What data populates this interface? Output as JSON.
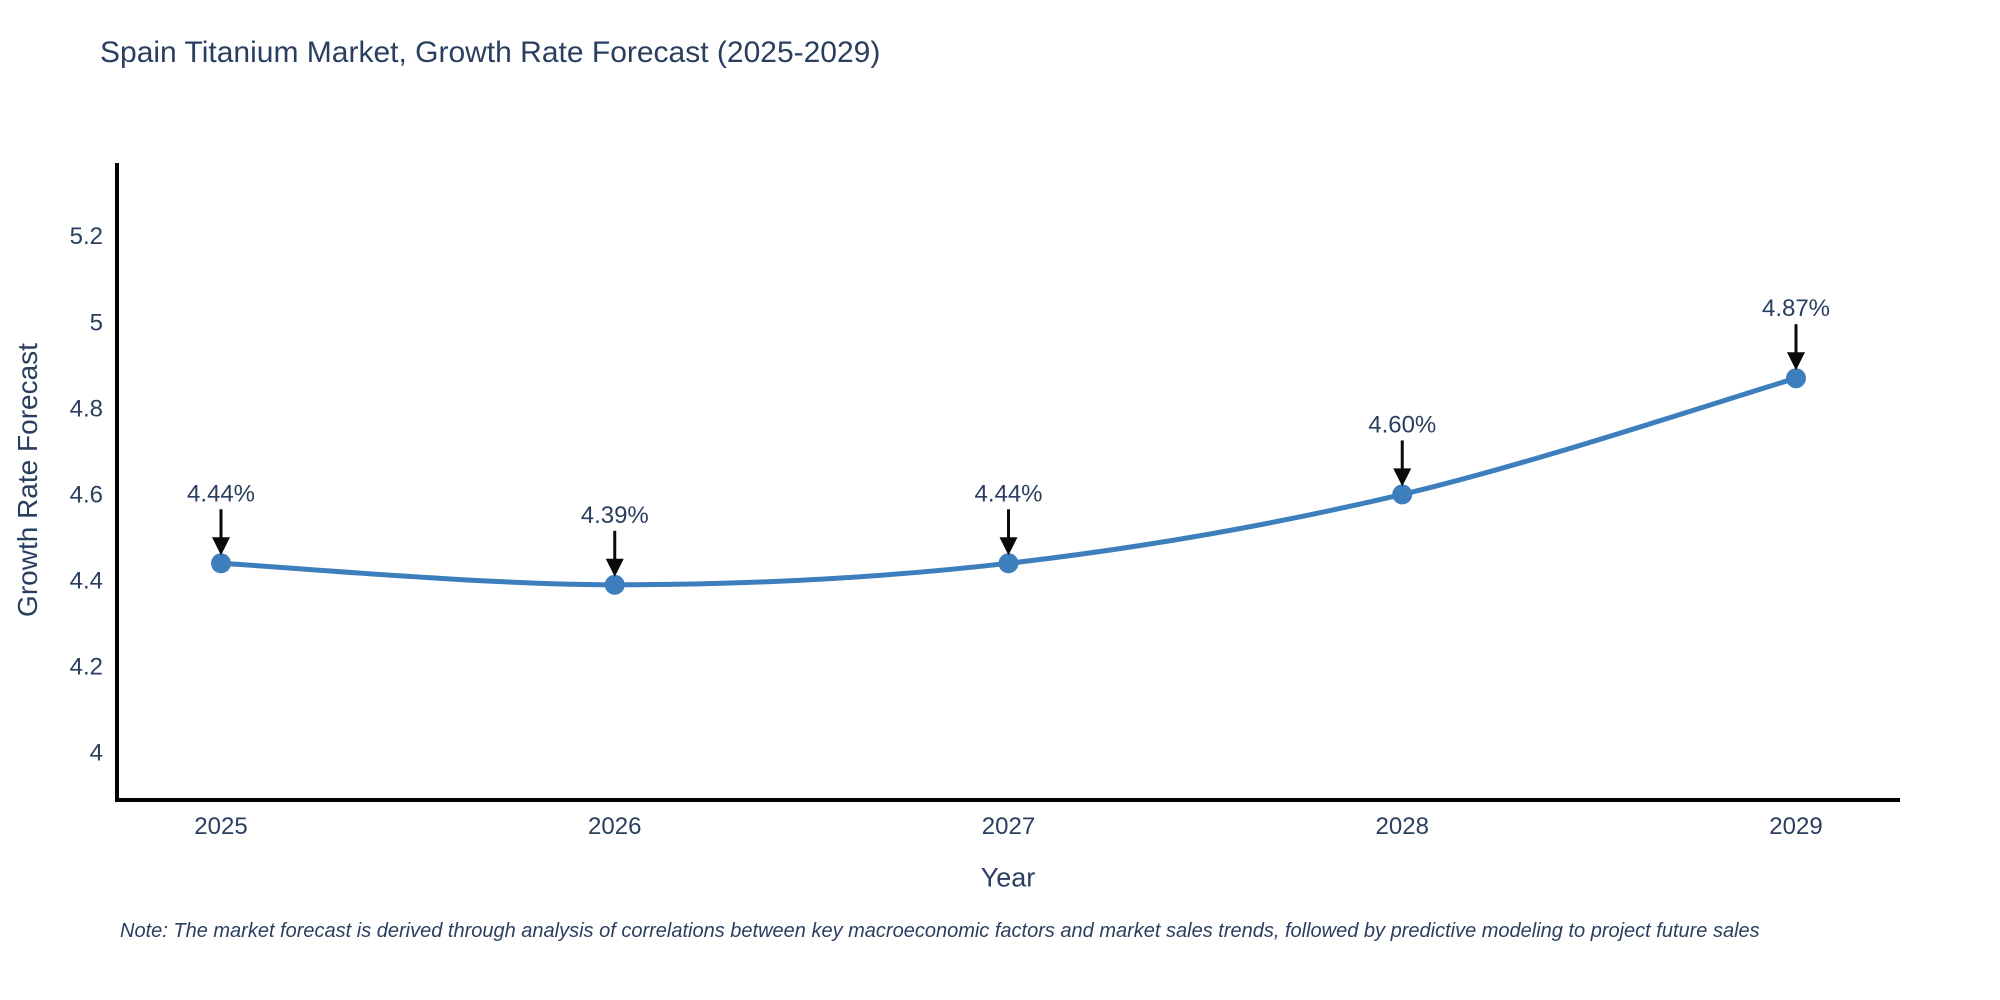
{
  "note": "Note: The market forecast is derived through analysis of correlations between key macroeconomic factors and market sales trends, followed by predictive modeling to project future sales",
  "chart_data": {
    "type": "line",
    "title": "Spain Titanium Market, Growth Rate Forecast (2025-2029)",
    "xlabel": "Year",
    "ylabel": "Growth Rate Forecast",
    "x": [
      2025,
      2026,
      2027,
      2028,
      2029
    ],
    "values": [
      4.44,
      4.39,
      4.44,
      4.6,
      4.87
    ],
    "point_labels": [
      "4.44%",
      "4.39%",
      "4.44%",
      "4.60%",
      "4.87%"
    ],
    "yticks": [
      "4",
      "4.2",
      "4.4",
      "4.6",
      "4.8",
      "5",
      "5.2"
    ],
    "ytick_values": [
      4,
      4.2,
      4.4,
      4.6,
      4.8,
      5,
      5.2
    ],
    "ylim": [
      3.89,
      5.37
    ],
    "line_shape": "spline",
    "grid": false,
    "legend": "none",
    "annotations": "value labels with down arrows above each point",
    "colors": {
      "line": "#3d7ebd",
      "marker": "#3d7ebd",
      "arrow": "#0a0a0a",
      "text": "#2a3f5f",
      "axis": "#000000",
      "background": "#ffffff"
    }
  }
}
